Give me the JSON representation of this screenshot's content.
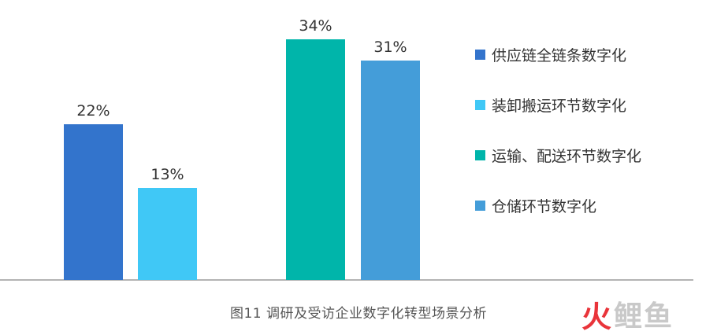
{
  "chart_data": {
    "type": "bar",
    "categories": [
      "供应链全链条数字化",
      "装卸搬运环节数字化",
      "运输、配送环节数字化",
      "仓储环节数字化"
    ],
    "values": [
      22,
      13,
      34,
      31
    ],
    "value_labels": [
      "22%",
      "13%",
      "34%",
      "31%"
    ],
    "colors": [
      "#3374cc",
      "#40c8f6",
      "#00b5aa",
      "#449dd9"
    ],
    "title": "",
    "xlabel": "",
    "ylabel": "",
    "ylim": [
      0,
      34
    ],
    "grid": false,
    "legend": "right"
  },
  "caption": "图11   调研及受访企业数字化转型场景分析",
  "watermark": {
    "part1": "火",
    "part2": "鲤鱼"
  }
}
